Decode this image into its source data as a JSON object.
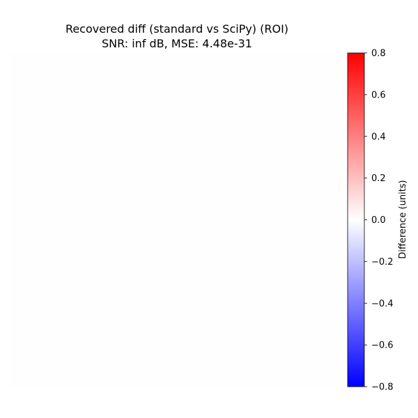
{
  "chart_data": {
    "type": "heatmap",
    "title": "Recovered diff (standard vs SciPy) (ROI)",
    "subtitle": "SNR: inf dB, MSE: 4.48e-31",
    "axes_visible": false,
    "grid": false,
    "image_value": 0.0,
    "colormap": "bwr",
    "colormap_stops": [
      "#0000ff",
      "#ffffff",
      "#ff0000"
    ],
    "colorbar": {
      "label": "Difference (units)",
      "range": [
        -0.8,
        0.8
      ],
      "ticks": [
        -0.8,
        -0.6,
        -0.4,
        -0.2,
        0.0,
        0.2,
        0.4,
        0.6,
        0.8
      ],
      "tick_labels": [
        "−0.8",
        "−0.6",
        "−0.4",
        "−0.2",
        "0.0",
        "0.2",
        "0.4",
        "0.6",
        "0.8"
      ],
      "placement": "right"
    }
  }
}
